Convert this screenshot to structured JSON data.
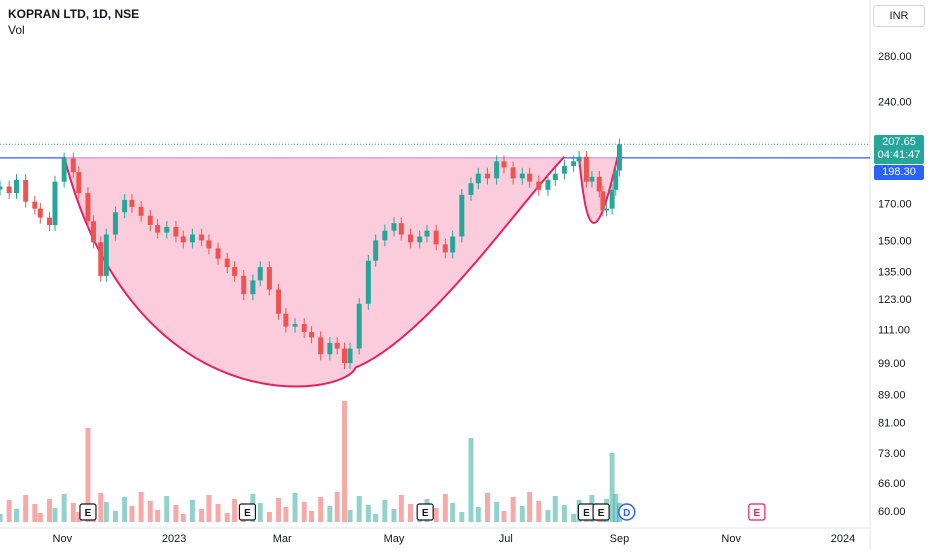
{
  "header": {
    "symbol_title": "KOPRAN LTD, 1D, NSE",
    "indicator_label": "Vol",
    "currency_label": "INR"
  },
  "price_tags": {
    "last_price": "207.65",
    "countdown": "04:41:47",
    "level_price": "198.30",
    "last_color": "#26a69a",
    "level_color": "#2962ff"
  },
  "event_markers": [
    {
      "label": "E",
      "date_index": 0
    },
    {
      "label": "E",
      "date_index": 1
    },
    {
      "label": "E",
      "date_index": 2
    },
    {
      "label": "E",
      "date_index": 3
    },
    {
      "label": "E",
      "date_index": 4
    },
    {
      "label": "D",
      "date_index": 5
    },
    {
      "label": "E",
      "date_index": 6
    }
  ],
  "chart_data": {
    "type": "candlestick",
    "y_tick_labels": [
      "280.00",
      "240.00",
      "207.65",
      "198.30",
      "170.00",
      "150.00",
      "135.00",
      "123.00",
      "111.00",
      "99.00",
      "89.00",
      "81.00",
      "73.00",
      "66.00",
      "60.00"
    ],
    "y_tick_values": [
      280,
      240,
      207.65,
      198.3,
      170,
      150,
      135,
      123,
      111,
      99,
      89,
      81,
      73,
      66,
      60
    ],
    "x_tick_labels": [
      "Nov",
      "2023",
      "Mar",
      "May",
      "Jul",
      "Sep",
      "Nov",
      "2024"
    ],
    "scale": "log",
    "ylim": [
      57,
      320
    ],
    "pattern": "cup-and-handle",
    "neckline_value": 198.3,
    "cup_bottom_value": 97.5,
    "colors": {
      "up": "#26a69a",
      "down": "#ef5350",
      "pattern_fill": "#f8bbd0",
      "pattern_stroke": "#e91e63",
      "neckline": "#2962ff"
    },
    "price_series": [
      [
        "2022-09-28",
        180
      ],
      [
        "2022-10-03",
        176
      ],
      [
        "2022-10-07",
        184
      ],
      [
        "2022-10-12",
        171
      ],
      [
        "2022-10-17",
        167
      ],
      [
        "2022-10-20",
        162
      ],
      [
        "2022-10-25",
        158
      ],
      [
        "2022-10-28",
        183
      ],
      [
        "2022-11-02",
        198
      ],
      [
        "2022-11-07",
        189
      ],
      [
        "2022-11-10",
        176
      ],
      [
        "2022-11-15",
        160
      ],
      [
        "2022-11-18",
        149
      ],
      [
        "2022-11-22",
        133
      ],
      [
        "2022-11-25",
        153
      ],
      [
        "2022-11-30",
        165
      ],
      [
        "2022-12-05",
        172
      ],
      [
        "2022-12-09",
        168
      ],
      [
        "2022-12-14",
        163
      ],
      [
        "2022-12-19",
        158
      ],
      [
        "2022-12-23",
        154
      ],
      [
        "2022-12-28",
        157
      ],
      [
        "2023-01-02",
        152
      ],
      [
        "2023-01-06",
        149
      ],
      [
        "2023-01-11",
        153
      ],
      [
        "2023-01-16",
        150
      ],
      [
        "2023-01-20",
        146
      ],
      [
        "2023-01-25",
        141
      ],
      [
        "2023-01-30",
        137
      ],
      [
        "2023-02-03",
        133
      ],
      [
        "2023-02-08",
        125
      ],
      [
        "2023-02-13",
        131
      ],
      [
        "2023-02-17",
        137
      ],
      [
        "2023-02-22",
        127
      ],
      [
        "2023-02-27",
        117
      ],
      [
        "2023-03-03",
        112
      ],
      [
        "2023-03-08",
        113
      ],
      [
        "2023-03-13",
        110
      ],
      [
        "2023-03-17",
        108
      ],
      [
        "2023-03-22",
        102
      ],
      [
        "2023-03-27",
        106
      ],
      [
        "2023-03-31",
        104
      ],
      [
        "2023-04-04",
        99
      ],
      [
        "2023-04-07",
        104
      ],
      [
        "2023-04-12",
        121
      ],
      [
        "2023-04-17",
        140
      ],
      [
        "2023-04-21",
        150
      ],
      [
        "2023-04-26",
        155
      ],
      [
        "2023-05-01",
        159
      ],
      [
        "2023-05-05",
        153
      ],
      [
        "2023-05-10",
        149
      ],
      [
        "2023-05-15",
        152
      ],
      [
        "2023-05-19",
        155
      ],
      [
        "2023-05-24",
        148
      ],
      [
        "2023-05-29",
        144
      ],
      [
        "2023-06-02",
        152
      ],
      [
        "2023-06-07",
        175
      ],
      [
        "2023-06-12",
        182
      ],
      [
        "2023-06-16",
        188
      ],
      [
        "2023-06-21",
        185
      ],
      [
        "2023-06-26",
        196
      ],
      [
        "2023-06-30",
        192
      ],
      [
        "2023-07-05",
        185
      ],
      [
        "2023-07-10",
        188
      ],
      [
        "2023-07-14",
        183
      ],
      [
        "2023-07-19",
        178
      ],
      [
        "2023-07-24",
        184
      ],
      [
        "2023-07-28",
        188
      ],
      [
        "2023-08-02",
        193
      ],
      [
        "2023-08-07",
        196
      ],
      [
        "2023-08-10",
        199
      ],
      [
        "2023-08-14",
        183
      ],
      [
        "2023-08-17",
        186
      ],
      [
        "2023-08-21",
        177
      ],
      [
        "2023-08-23",
        166
      ],
      [
        "2023-08-25",
        167
      ],
      [
        "2023-08-28",
        178
      ],
      [
        "2023-08-30",
        190
      ],
      [
        "2023-09-01",
        207.65
      ]
    ]
  }
}
